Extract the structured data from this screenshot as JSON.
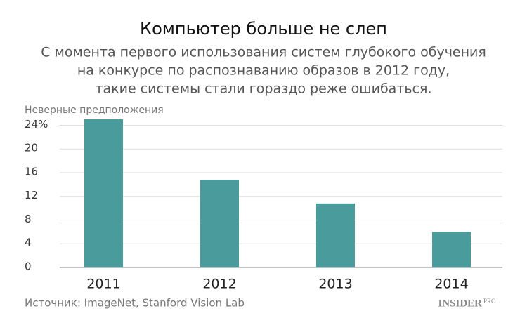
{
  "chart_data": {
    "type": "bar",
    "title": "Компьютер больше не слеп",
    "subtitle": [
      "С момента первого использования систем глубокого обучения",
      "на конкурсе по распознаванию образов в 2012 году,",
      "такие системы стали гораздо реже ошибаться."
    ],
    "y_label": "Неверные предположения",
    "categories": [
      "2011",
      "2012",
      "2013",
      "2014"
    ],
    "values": [
      25,
      14.8,
      10.8,
      6
    ],
    "color": "#4a9c9c",
    "ylim": [
      0,
      25
    ],
    "yticks": [
      0,
      4,
      8,
      12,
      16,
      20,
      {
        "value": 24,
        "label": "24%"
      }
    ],
    "grid": true,
    "source": "Источник: ImageNet, Stanford Vision Lab",
    "logo": {
      "main": "INSIDER",
      "sub": "PRO"
    }
  }
}
